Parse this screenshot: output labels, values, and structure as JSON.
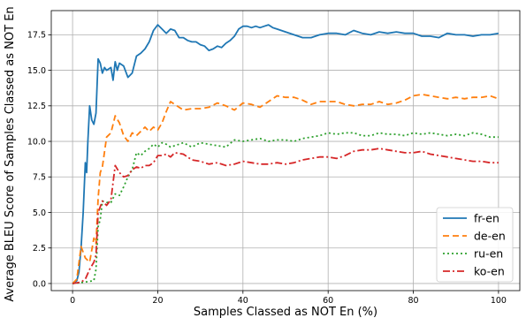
{
  "chart_data": {
    "type": "line",
    "title": "",
    "xlabel": "Samples Classed as NOT En (%)",
    "ylabel": "Average BLEU Score of Samples Classed as NOT En",
    "xlim": [
      -5,
      105
    ],
    "ylim": [
      -0.5,
      19.2
    ],
    "xticks": [
      0,
      20,
      40,
      60,
      80,
      100
    ],
    "yticks": [
      0.0,
      2.5,
      5.0,
      7.5,
      10.0,
      12.5,
      15.0,
      17.5
    ],
    "grid": true,
    "legend_position": "lower-right",
    "series": [
      {
        "name": "fr-en",
        "color": "#1f77b4",
        "dash": "solid",
        "points": [
          [
            0,
            0
          ],
          [
            1,
            0.2
          ],
          [
            1.5,
            0.8
          ],
          [
            2,
            2.5
          ],
          [
            2.5,
            5
          ],
          [
            3,
            8.5
          ],
          [
            3.3,
            7.8
          ],
          [
            3.6,
            10
          ],
          [
            4,
            12.5
          ],
          [
            4.5,
            11.5
          ],
          [
            5,
            11.2
          ],
          [
            5.5,
            12
          ],
          [
            6,
            15.8
          ],
          [
            6.5,
            15.5
          ],
          [
            7,
            14.8
          ],
          [
            7.5,
            15.2
          ],
          [
            8,
            15
          ],
          [
            9,
            15.2
          ],
          [
            9.5,
            14.3
          ],
          [
            10,
            15.6
          ],
          [
            10.5,
            15
          ],
          [
            11,
            15.5
          ],
          [
            12,
            15.3
          ],
          [
            13,
            14.5
          ],
          [
            14,
            14.8
          ],
          [
            15,
            16
          ],
          [
            16,
            16.2
          ],
          [
            17,
            16.5
          ],
          [
            18,
            17
          ],
          [
            19,
            17.8
          ],
          [
            20,
            18.2
          ],
          [
            21,
            17.9
          ],
          [
            22,
            17.6
          ],
          [
            23,
            17.9
          ],
          [
            24,
            17.8
          ],
          [
            25,
            17.3
          ],
          [
            26,
            17.3
          ],
          [
            27,
            17.1
          ],
          [
            28,
            17
          ],
          [
            29,
            17
          ],
          [
            30,
            16.8
          ],
          [
            31,
            16.7
          ],
          [
            32,
            16.4
          ],
          [
            33,
            16.5
          ],
          [
            34,
            16.7
          ],
          [
            35,
            16.6
          ],
          [
            36,
            16.9
          ],
          [
            37,
            17.1
          ],
          [
            38,
            17.4
          ],
          [
            39,
            17.9
          ],
          [
            40,
            18.1
          ],
          [
            41,
            18.1
          ],
          [
            42,
            18
          ],
          [
            43,
            18.1
          ],
          [
            44,
            18
          ],
          [
            45,
            18.1
          ],
          [
            46,
            18.2
          ],
          [
            47,
            18
          ],
          [
            48,
            17.9
          ],
          [
            50,
            17.7
          ],
          [
            52,
            17.5
          ],
          [
            54,
            17.3
          ],
          [
            56,
            17.3
          ],
          [
            58,
            17.5
          ],
          [
            60,
            17.6
          ],
          [
            62,
            17.6
          ],
          [
            64,
            17.5
          ],
          [
            66,
            17.8
          ],
          [
            68,
            17.6
          ],
          [
            70,
            17.5
          ],
          [
            72,
            17.7
          ],
          [
            74,
            17.6
          ],
          [
            76,
            17.7
          ],
          [
            78,
            17.6
          ],
          [
            80,
            17.6
          ],
          [
            82,
            17.4
          ],
          [
            84,
            17.4
          ],
          [
            86,
            17.3
          ],
          [
            88,
            17.6
          ],
          [
            90,
            17.5
          ],
          [
            92,
            17.5
          ],
          [
            94,
            17.4
          ],
          [
            96,
            17.5
          ],
          [
            98,
            17.5
          ],
          [
            100,
            17.6
          ]
        ]
      },
      {
        "name": "de-en",
        "color": "#ff7f0e",
        "dash": "7,4",
        "points": [
          [
            0,
            0
          ],
          [
            1,
            0.3
          ],
          [
            2,
            2.6
          ],
          [
            3,
            1.8
          ],
          [
            4,
            1.5
          ],
          [
            5,
            3.2
          ],
          [
            5.5,
            2.8
          ],
          [
            6,
            6
          ],
          [
            6.5,
            7.8
          ],
          [
            7,
            8.2
          ],
          [
            8,
            10.3
          ],
          [
            9,
            10.6
          ],
          [
            10,
            11.8
          ],
          [
            11,
            11.3
          ],
          [
            12,
            10.4
          ],
          [
            13,
            10
          ],
          [
            14,
            10.6
          ],
          [
            15,
            10.4
          ],
          [
            16,
            10.7
          ],
          [
            17,
            11
          ],
          [
            18,
            10.7
          ],
          [
            19,
            11
          ],
          [
            20,
            10.8
          ],
          [
            21,
            11.3
          ],
          [
            22,
            12.1
          ],
          [
            23,
            12.8
          ],
          [
            24,
            12.6
          ],
          [
            25,
            12.4
          ],
          [
            26,
            12.2
          ],
          [
            28,
            12.3
          ],
          [
            30,
            12.3
          ],
          [
            32,
            12.4
          ],
          [
            34,
            12.7
          ],
          [
            36,
            12.5
          ],
          [
            38,
            12.2
          ],
          [
            40,
            12.7
          ],
          [
            42,
            12.6
          ],
          [
            44,
            12.4
          ],
          [
            46,
            12.8
          ],
          [
            48,
            13.2
          ],
          [
            50,
            13.1
          ],
          [
            52,
            13.1
          ],
          [
            54,
            12.9
          ],
          [
            56,
            12.6
          ],
          [
            58,
            12.8
          ],
          [
            60,
            12.8
          ],
          [
            62,
            12.8
          ],
          [
            64,
            12.6
          ],
          [
            66,
            12.5
          ],
          [
            68,
            12.6
          ],
          [
            70,
            12.6
          ],
          [
            72,
            12.8
          ],
          [
            74,
            12.6
          ],
          [
            76,
            12.7
          ],
          [
            78,
            12.9
          ],
          [
            80,
            13.2
          ],
          [
            82,
            13.3
          ],
          [
            84,
            13.2
          ],
          [
            86,
            13.1
          ],
          [
            88,
            13
          ],
          [
            90,
            13.1
          ],
          [
            92,
            13
          ],
          [
            94,
            13.1
          ],
          [
            96,
            13.1
          ],
          [
            98,
            13.2
          ],
          [
            100,
            13
          ]
        ]
      },
      {
        "name": "ru-en",
        "color": "#2ca02c",
        "dash": "2,3",
        "points": [
          [
            0,
            0
          ],
          [
            3,
            0.1
          ],
          [
            5,
            0.2
          ],
          [
            5.5,
            1
          ],
          [
            6,
            4
          ],
          [
            6.5,
            4.5
          ],
          [
            7,
            5.8
          ],
          [
            8,
            5.7
          ],
          [
            9,
            5.7
          ],
          [
            10,
            6.3
          ],
          [
            11,
            6.2
          ],
          [
            12,
            6.8
          ],
          [
            13,
            7.5
          ],
          [
            14,
            8
          ],
          [
            15,
            9.2
          ],
          [
            16,
            9
          ],
          [
            17,
            9.3
          ],
          [
            18,
            9.5
          ],
          [
            19,
            9.8
          ],
          [
            20,
            9.6
          ],
          [
            21,
            9.9
          ],
          [
            22,
            9.8
          ],
          [
            23,
            9.6
          ],
          [
            24,
            9.7
          ],
          [
            26,
            9.9
          ],
          [
            28,
            9.6
          ],
          [
            30,
            9.9
          ],
          [
            32,
            9.8
          ],
          [
            34,
            9.7
          ],
          [
            36,
            9.6
          ],
          [
            38,
            10.1
          ],
          [
            40,
            10
          ],
          [
            42,
            10.1
          ],
          [
            44,
            10.2
          ],
          [
            46,
            10
          ],
          [
            48,
            10.1
          ],
          [
            50,
            10.1
          ],
          [
            52,
            10
          ],
          [
            54,
            10.2
          ],
          [
            56,
            10.3
          ],
          [
            58,
            10.4
          ],
          [
            60,
            10.6
          ],
          [
            62,
            10.5
          ],
          [
            64,
            10.6
          ],
          [
            66,
            10.6
          ],
          [
            68,
            10.4
          ],
          [
            70,
            10.4
          ],
          [
            72,
            10.6
          ],
          [
            74,
            10.5
          ],
          [
            76,
            10.5
          ],
          [
            78,
            10.4
          ],
          [
            80,
            10.6
          ],
          [
            82,
            10.5
          ],
          [
            84,
            10.6
          ],
          [
            86,
            10.5
          ],
          [
            88,
            10.4
          ],
          [
            90,
            10.5
          ],
          [
            92,
            10.4
          ],
          [
            94,
            10.6
          ],
          [
            96,
            10.5
          ],
          [
            98,
            10.3
          ],
          [
            100,
            10.3
          ]
        ]
      },
      {
        "name": "ko-en",
        "color": "#d62728",
        "dash": "8,3,2,3",
        "points": [
          [
            0,
            0
          ],
          [
            2,
            0.1
          ],
          [
            3,
            0.3
          ],
          [
            4,
            1
          ],
          [
            5,
            1.5
          ],
          [
            5.5,
            2
          ],
          [
            6,
            5
          ],
          [
            7,
            5.8
          ],
          [
            8,
            5.5
          ],
          [
            9,
            5.9
          ],
          [
            10,
            8.3
          ],
          [
            11,
            7.8
          ],
          [
            12,
            7.5
          ],
          [
            13,
            7.6
          ],
          [
            14,
            8
          ],
          [
            15,
            8.2
          ],
          [
            16,
            8.1
          ],
          [
            17,
            8.3
          ],
          [
            18,
            8.3
          ],
          [
            19,
            8.5
          ],
          [
            20,
            9
          ],
          [
            21,
            9
          ],
          [
            22,
            9.1
          ],
          [
            23,
            8.9
          ],
          [
            24,
            9.2
          ],
          [
            26,
            9.1
          ],
          [
            28,
            8.7
          ],
          [
            30,
            8.6
          ],
          [
            32,
            8.4
          ],
          [
            34,
            8.5
          ],
          [
            36,
            8.3
          ],
          [
            38,
            8.4
          ],
          [
            40,
            8.6
          ],
          [
            42,
            8.5
          ],
          [
            44,
            8.4
          ],
          [
            46,
            8.4
          ],
          [
            48,
            8.5
          ],
          [
            50,
            8.4
          ],
          [
            52,
            8.5
          ],
          [
            54,
            8.7
          ],
          [
            56,
            8.8
          ],
          [
            58,
            8.9
          ],
          [
            60,
            8.9
          ],
          [
            62,
            8.8
          ],
          [
            64,
            9
          ],
          [
            66,
            9.3
          ],
          [
            68,
            9.4
          ],
          [
            70,
            9.4
          ],
          [
            72,
            9.5
          ],
          [
            74,
            9.4
          ],
          [
            76,
            9.3
          ],
          [
            78,
            9.2
          ],
          [
            80,
            9.2
          ],
          [
            82,
            9.3
          ],
          [
            84,
            9.1
          ],
          [
            86,
            9
          ],
          [
            88,
            8.9
          ],
          [
            90,
            8.8
          ],
          [
            92,
            8.7
          ],
          [
            94,
            8.6
          ],
          [
            96,
            8.6
          ],
          [
            98,
            8.5
          ],
          [
            100,
            8.5
          ]
        ]
      }
    ]
  }
}
